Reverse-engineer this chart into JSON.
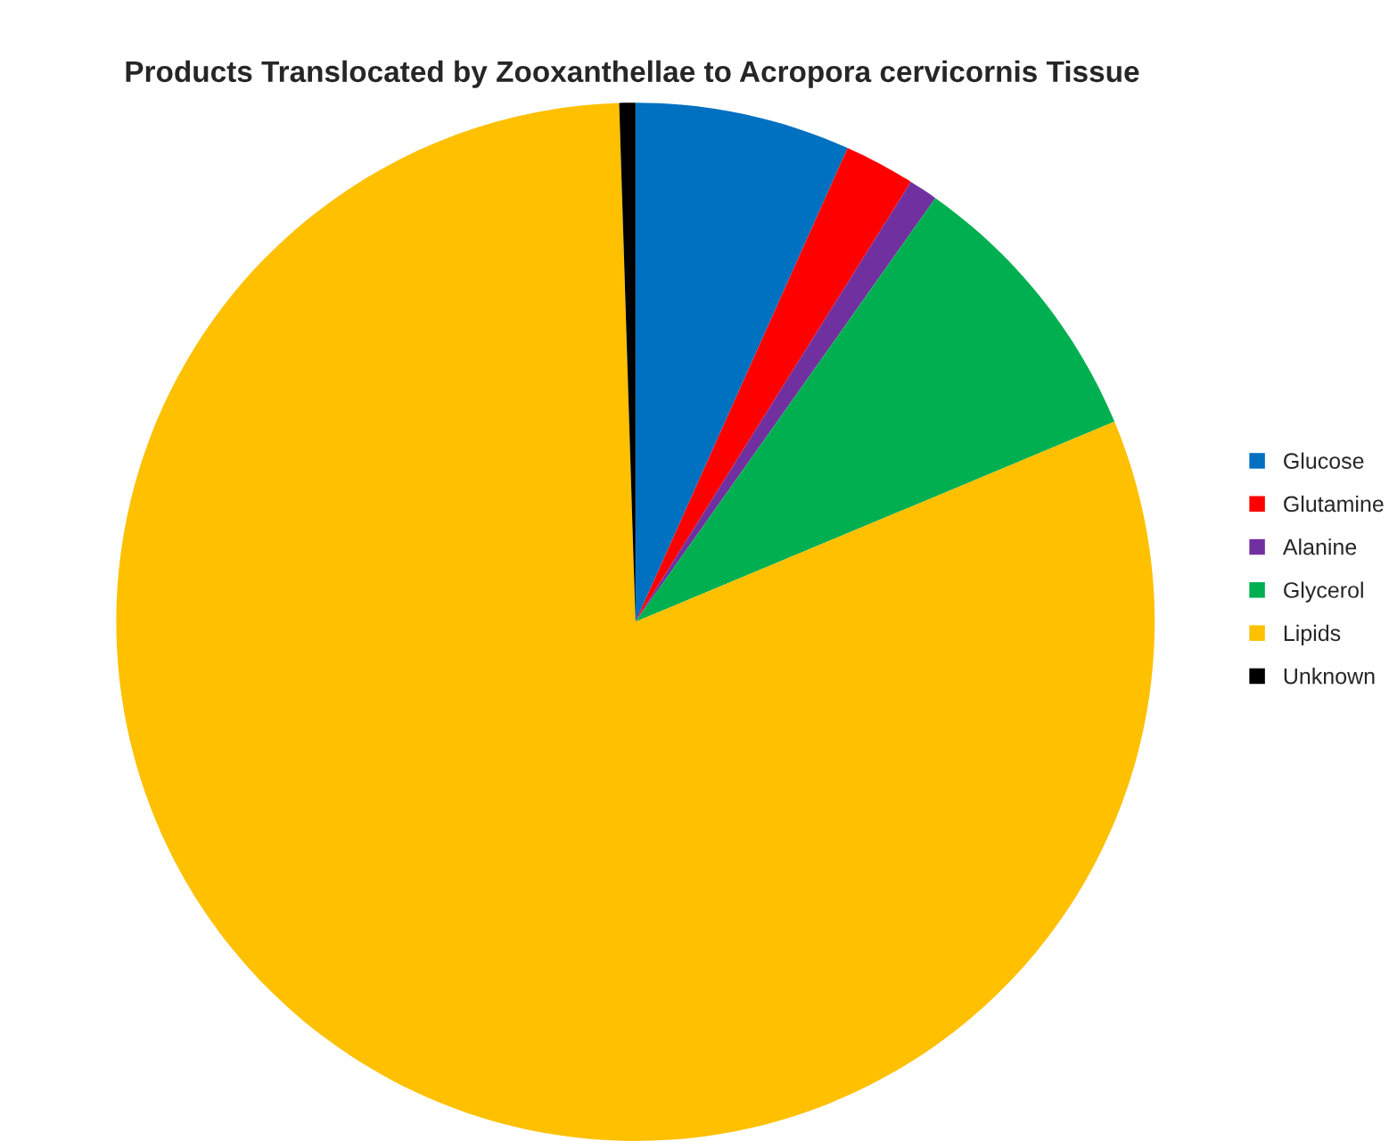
{
  "chart_data": {
    "type": "pie",
    "title": "Products Translocated by Zooxanthellae to Acropora cervicornis Tissue",
    "categories": [
      "Glucose",
      "Glutamine",
      "Alanine",
      "Glycerol",
      "Lipids",
      "Unknown"
    ],
    "values": [
      6.7,
      2.2,
      0.9,
      8.9,
      80.8,
      0.5
    ],
    "colors": [
      "#0070c0",
      "#ff0000",
      "#7030a0",
      "#00b050",
      "#ffc000",
      "#000000"
    ],
    "legend": "right"
  }
}
